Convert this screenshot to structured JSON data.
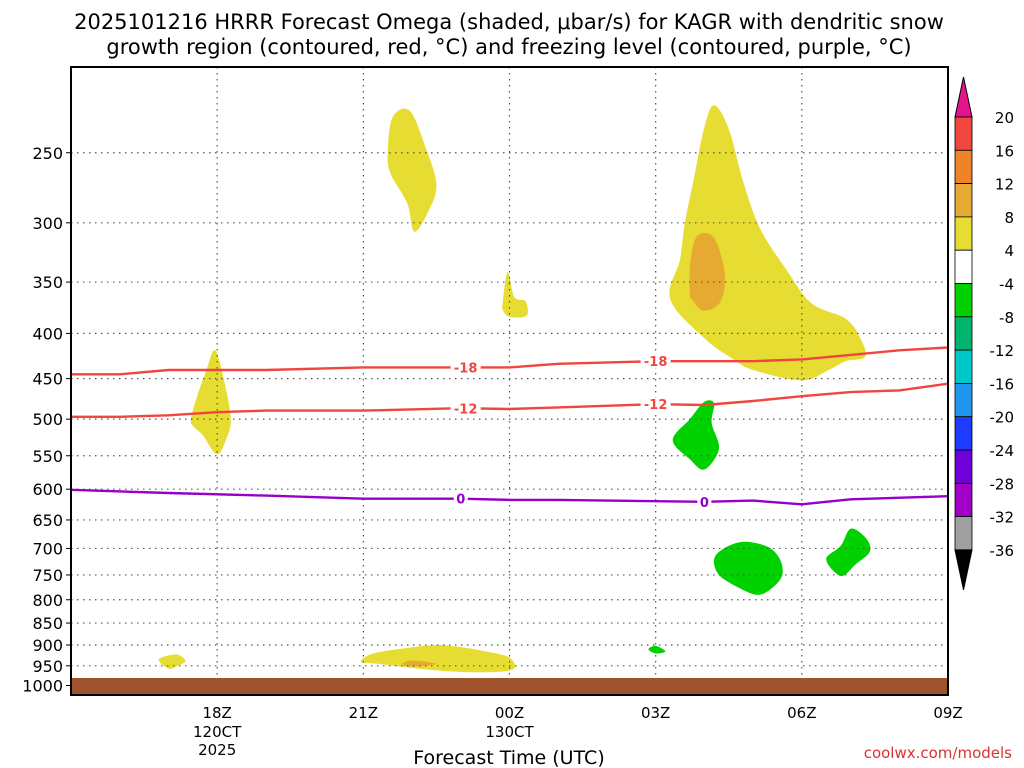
{
  "chart_data": {
    "type": "time-height contour",
    "title_line1": "2025101216 HRRR Forecast Omega (shaded, μbar/s) for KAGR with dendritic snow",
    "title_line2": "growth region (contoured, red, °C) and freezing level (contoured, purple, °C)",
    "xlabel": "Forecast Time (UTC)",
    "credit": "coolwx.com/models",
    "x_range_hours": [
      -2.0,
      16.0
    ],
    "pressure_range": [
      200,
      1025
    ],
    "pressure_ticks": [
      250,
      300,
      350,
      400,
      450,
      500,
      550,
      600,
      650,
      700,
      750,
      800,
      850,
      900,
      950,
      1000
    ],
    "time_ticks": [
      {
        "hour": 1,
        "label": "18Z",
        "sub1": "120CT",
        "sub2": "2025"
      },
      {
        "hour": 4,
        "label": "21Z",
        "sub1": "",
        "sub2": ""
      },
      {
        "hour": 7,
        "label": "00Z",
        "sub1": "130CT",
        "sub2": ""
      },
      {
        "hour": 10,
        "label": "03Z",
        "sub1": "",
        "sub2": ""
      },
      {
        "hour": 13,
        "label": "06Z",
        "sub1": "",
        "sub2": ""
      },
      {
        "hour": 16,
        "label": "09Z",
        "sub1": "",
        "sub2": ""
      }
    ],
    "colorbar": {
      "levels": [
        "20",
        "16",
        "12",
        "8",
        "4",
        "-4",
        "-8",
        "-12",
        "-16",
        "-20",
        "-24",
        "-28",
        "-32",
        "-36"
      ],
      "colors": [
        "#f01e50",
        "#f04640",
        "#f08228",
        "#e6aa32",
        "#e6dc32",
        "#ffffff",
        "#00d200",
        "#00b46e",
        "#00c8c8",
        "#1e96f0",
        "#1e3cff",
        "#6e00dc",
        "#a000c8",
        "#a0a0a0"
      ],
      "top_color": "#e6148c",
      "bottom_color": "#000000"
    },
    "isotherms": [
      {
        "name": "isotherm -18C",
        "value": -18,
        "color": "#f04640",
        "label": "-18",
        "points": [
          [
            -2.0,
            445
          ],
          [
            -1.0,
            445
          ],
          [
            0.0,
            440
          ],
          [
            2.0,
            440
          ],
          [
            4.0,
            437
          ],
          [
            6.0,
            437
          ],
          [
            7.0,
            437
          ],
          [
            8.0,
            433
          ],
          [
            10.0,
            430
          ],
          [
            12.0,
            430
          ],
          [
            13.0,
            428
          ],
          [
            14.0,
            423
          ],
          [
            15.0,
            418
          ],
          [
            16.0,
            415
          ],
          [
            16.0,
            415
          ]
        ],
        "label_hours": [
          6.1,
          10.0
        ]
      },
      {
        "name": "isotherm -12C",
        "value": -12,
        "color": "#f04640",
        "label": "-12",
        "points": [
          [
            -2.0,
            497
          ],
          [
            -1.0,
            497
          ],
          [
            0.0,
            495
          ],
          [
            1.0,
            491
          ],
          [
            2.0,
            489
          ],
          [
            4.0,
            489
          ],
          [
            6.0,
            486
          ],
          [
            7.0,
            487
          ],
          [
            8.0,
            485
          ],
          [
            10.0,
            481
          ],
          [
            11.0,
            482
          ],
          [
            12.0,
            477
          ],
          [
            13.0,
            471
          ],
          [
            14.0,
            466
          ],
          [
            15.0,
            464
          ],
          [
            16.0,
            456
          ]
        ],
        "label_hours": [
          6.1,
          10.0
        ]
      },
      {
        "name": "freezing level 0C",
        "value": 0,
        "color": "#9600c8",
        "label": "0",
        "points": [
          [
            -2.0,
            601
          ],
          [
            0.0,
            606
          ],
          [
            2.0,
            610
          ],
          [
            4.0,
            615
          ],
          [
            6.0,
            615
          ],
          [
            7.0,
            617
          ],
          [
            8.0,
            617
          ],
          [
            10.0,
            619
          ],
          [
            11.0,
            620
          ],
          [
            12.0,
            618
          ],
          [
            13.0,
            624
          ],
          [
            14.0,
            616
          ],
          [
            16.0,
            611
          ],
          [
            16.0,
            611
          ]
        ],
        "label_hours": [
          6.0,
          11.0
        ]
      }
    ],
    "omega_regions": [
      {
        "name": "lift-1716z-470mb",
        "level": 4,
        "color": "#e6dc32",
        "points": [
          [
            0.46,
            500
          ],
          [
            0.6,
            469
          ],
          [
            0.78,
            440
          ],
          [
            0.96,
            418
          ],
          [
            1.16,
            457
          ],
          [
            1.28,
            500
          ],
          [
            1.2,
            524
          ],
          [
            1.0,
            548
          ],
          [
            0.7,
            521
          ],
          [
            0.52,
            510
          ]
        ]
      },
      {
        "name": "lift-1715z-925mb",
        "level": 4,
        "color": "#e6dc32",
        "points": [
          [
            -0.2,
            936
          ],
          [
            0.0,
            925
          ],
          [
            0.2,
            923
          ],
          [
            0.35,
            939
          ],
          [
            0.15,
            952
          ],
          [
            0.0,
            957
          ]
        ]
      },
      {
        "name": "lift-2135z-260mb",
        "level": 4,
        "color": "#e6dc32",
        "points": [
          [
            4.5,
            250
          ],
          [
            4.6,
            228
          ],
          [
            4.95,
            224
          ],
          [
            5.26,
            245
          ],
          [
            5.5,
            271
          ],
          [
            5.35,
            290
          ],
          [
            5.05,
            307
          ],
          [
            4.9,
            285
          ],
          [
            4.56,
            264
          ]
        ]
      },
      {
        "name": "lift-2355z-360mb",
        "level": 4,
        "color": "#e6dc32",
        "points": [
          [
            6.86,
            369
          ],
          [
            6.96,
            341
          ],
          [
            7.1,
            364
          ],
          [
            7.33,
            368
          ],
          [
            7.35,
            382
          ],
          [
            7.0,
            383
          ],
          [
            6.86,
            376
          ]
        ]
      },
      {
        "name": "lift-2245z-940mb",
        "level": 4,
        "color": "#e6dc32",
        "points": [
          [
            3.95,
            940
          ],
          [
            4.2,
            920
          ],
          [
            4.9,
            907
          ],
          [
            5.5,
            900
          ],
          [
            6.0,
            905
          ],
          [
            6.5,
            915
          ],
          [
            7.0,
            930
          ],
          [
            7.05,
            960
          ],
          [
            6.2,
            966
          ],
          [
            5.2,
            958
          ],
          [
            4.3,
            945
          ]
        ]
      },
      {
        "name": "lift-0400z-360mb",
        "level": 4,
        "color": "#e6dc32",
        "points": [
          [
            10.6,
            300
          ],
          [
            10.8,
            265
          ],
          [
            11.0,
            234
          ],
          [
            11.2,
            221
          ],
          [
            11.5,
            235
          ],
          [
            11.8,
            270
          ],
          [
            12.15,
            305
          ],
          [
            12.7,
            340
          ],
          [
            13.2,
            370
          ],
          [
            13.9,
            385
          ],
          [
            14.2,
            405
          ],
          [
            14.3,
            425
          ],
          [
            13.9,
            430
          ],
          [
            13.55,
            440
          ],
          [
            13.0,
            452
          ],
          [
            12.0,
            440
          ],
          [
            11.6,
            428
          ],
          [
            11.0,
            405
          ],
          [
            10.3,
            366
          ],
          [
            10.5,
            330
          ]
        ]
      },
      {
        "name": "lift-0400z-340mb-core",
        "level": 8,
        "color": "#e6aa32",
        "points": [
          [
            10.7,
            360
          ],
          [
            10.72,
            330
          ],
          [
            10.86,
            310
          ],
          [
            11.2,
            312
          ],
          [
            11.42,
            343
          ],
          [
            11.32,
            369
          ],
          [
            10.98,
            377
          ],
          [
            10.76,
            367
          ]
        ]
      },
      {
        "name": "lift-2230z-945mb-core",
        "level": 8,
        "color": "#e6aa32",
        "points": [
          [
            4.8,
            945
          ],
          [
            5.0,
            937
          ],
          [
            5.5,
            945
          ],
          [
            5.0,
            952
          ]
        ]
      },
      {
        "name": "sink-0425z-540mb",
        "level": -4,
        "color": "#00d200",
        "points": [
          [
            10.35,
            528
          ],
          [
            10.7,
            500
          ],
          [
            11.0,
            478
          ],
          [
            11.2,
            480
          ],
          [
            11.15,
            505
          ],
          [
            11.3,
            540
          ],
          [
            11.0,
            570
          ],
          [
            10.7,
            555
          ]
        ]
      },
      {
        "name": "sink-0530z-730mb",
        "level": -4,
        "color": "#00d200",
        "points": [
          [
            11.2,
            720
          ],
          [
            11.4,
            700
          ],
          [
            11.8,
            688
          ],
          [
            12.3,
            697
          ],
          [
            12.55,
            720
          ],
          [
            12.6,
            750
          ],
          [
            12.4,
            775
          ],
          [
            12.1,
            790
          ],
          [
            11.7,
            775
          ],
          [
            11.3,
            750
          ]
        ]
      },
      {
        "name": "sink-0645z-710mb",
        "level": -4,
        "color": "#00d200",
        "points": [
          [
            13.5,
            720
          ],
          [
            13.8,
            695
          ],
          [
            14.0,
            665
          ],
          [
            14.3,
            680
          ],
          [
            14.4,
            705
          ],
          [
            14.1,
            730
          ],
          [
            13.8,
            752
          ]
        ]
      },
      {
        "name": "sink-0300z-910mb",
        "level": -4,
        "color": "#00d200",
        "points": [
          [
            9.85,
            910
          ],
          [
            10.0,
            902
          ],
          [
            10.2,
            915
          ],
          [
            10.0,
            920
          ]
        ]
      }
    ]
  }
}
